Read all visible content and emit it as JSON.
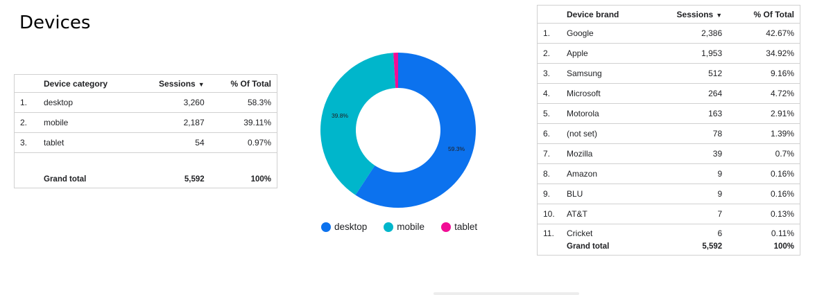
{
  "page": {
    "title": "Devices"
  },
  "category_table": {
    "headers": {
      "name": "Device category",
      "sessions": "Sessions",
      "pct": "% Of Total"
    },
    "sort_icon": "sort-desc-icon",
    "rows": [
      {
        "idx": "1.",
        "name": "desktop",
        "sessions": "3,260",
        "pct": "58.3%"
      },
      {
        "idx": "2.",
        "name": "mobile",
        "sessions": "2,187",
        "pct": "39.11%"
      },
      {
        "idx": "3.",
        "name": "tablet",
        "sessions": "54",
        "pct": "0.97%"
      }
    ],
    "total": {
      "label": "Grand total",
      "sessions": "5,592",
      "pct": "100%"
    }
  },
  "brand_table": {
    "headers": {
      "name": "Device brand",
      "sessions": "Sessions",
      "pct": "% Of Total"
    },
    "sort_icon": "sort-desc-icon",
    "rows": [
      {
        "idx": "1.",
        "name": "Google",
        "sessions": "2,386",
        "pct": "42.67%"
      },
      {
        "idx": "2.",
        "name": "Apple",
        "sessions": "1,953",
        "pct": "34.92%"
      },
      {
        "idx": "3.",
        "name": "Samsung",
        "sessions": "512",
        "pct": "9.16%"
      },
      {
        "idx": "4.",
        "name": "Microsoft",
        "sessions": "264",
        "pct": "4.72%"
      },
      {
        "idx": "5.",
        "name": "Motorola",
        "sessions": "163",
        "pct": "2.91%"
      },
      {
        "idx": "6.",
        "name": "(not set)",
        "sessions": "78",
        "pct": "1.39%"
      },
      {
        "idx": "7.",
        "name": "Mozilla",
        "sessions": "39",
        "pct": "0.7%"
      },
      {
        "idx": "8.",
        "name": "Amazon",
        "sessions": "9",
        "pct": "0.16%"
      },
      {
        "idx": "9.",
        "name": "BLU",
        "sessions": "9",
        "pct": "0.16%"
      },
      {
        "idx": "10.",
        "name": "AT&T",
        "sessions": "7",
        "pct": "0.13%"
      },
      {
        "idx": "11.",
        "name": "Cricket",
        "sessions": "6",
        "pct": "0.11%"
      }
    ],
    "total": {
      "label": "Grand total",
      "sessions": "5,592",
      "pct": "100%"
    }
  },
  "chart_data": {
    "type": "pie",
    "donut": true,
    "categories": [
      "desktop",
      "mobile",
      "tablet"
    ],
    "values": [
      3260,
      2187,
      54
    ],
    "slice_labels": [
      "59.3%",
      "39.8%",
      ""
    ],
    "colors": [
      "#0c72ee",
      "#00b6cb",
      "#f10d95"
    ],
    "legend": "bottom"
  }
}
